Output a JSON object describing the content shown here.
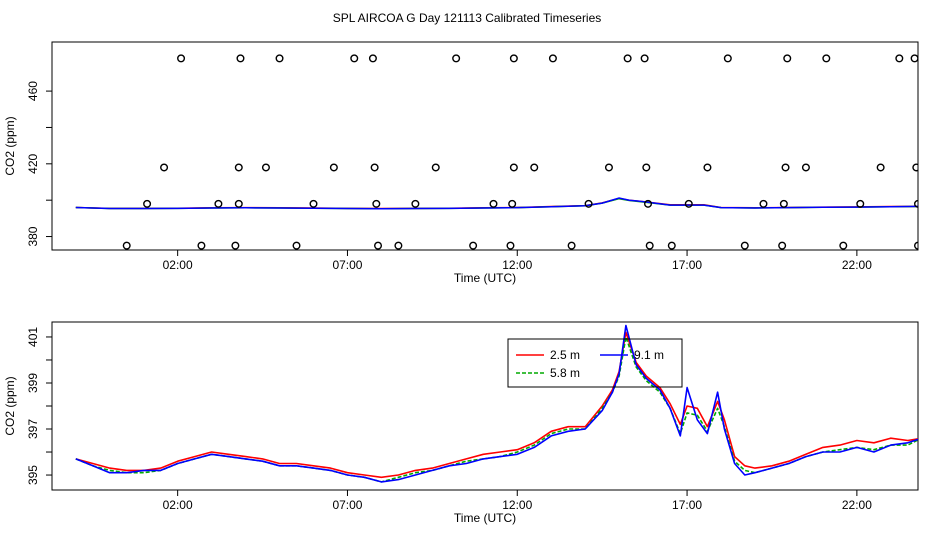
{
  "title": "SPL AIRCOA G  Day 121113  Calibrated Timeseries",
  "chart_data": [
    {
      "type": "scatter",
      "xlabel": "Time (UTC)",
      "ylabel": "CO2 (ppm)",
      "x_unit": "hours UTC",
      "xlim": [
        -1.7,
        23.8
      ],
      "ylim": [
        372.6,
        487.0
      ],
      "x_ticks": [
        {
          "value": 2,
          "label": "02:00"
        },
        {
          "value": 7,
          "label": "07:00"
        },
        {
          "value": 12,
          "label": "12:00"
        },
        {
          "value": 17,
          "label": "17:00"
        },
        {
          "value": 22,
          "label": "22:00"
        }
      ],
      "y_ticks": [
        380,
        420,
        460
      ],
      "y_minor_ticks": [
        400,
        440
      ],
      "legend": "none",
      "points": [
        {
          "x": 0.5,
          "y": 375
        },
        {
          "x": 1.1,
          "y": 398
        },
        {
          "x": 1.6,
          "y": 418
        },
        {
          "x": 2.1,
          "y": 478
        },
        {
          "x": 2.7,
          "y": 375
        },
        {
          "x": 3.2,
          "y": 398
        },
        {
          "x": 3.7,
          "y": 375
        },
        {
          "x": 3.8,
          "y": 398
        },
        {
          "x": 3.8,
          "y": 418
        },
        {
          "x": 3.85,
          "y": 478
        },
        {
          "x": 4.6,
          "y": 418
        },
        {
          "x": 5.0,
          "y": 478
        },
        {
          "x": 5.5,
          "y": 375
        },
        {
          "x": 6.0,
          "y": 398
        },
        {
          "x": 6.6,
          "y": 418
        },
        {
          "x": 7.2,
          "y": 478
        },
        {
          "x": 7.75,
          "y": 478
        },
        {
          "x": 7.8,
          "y": 418
        },
        {
          "x": 7.85,
          "y": 398
        },
        {
          "x": 7.9,
          "y": 375
        },
        {
          "x": 8.5,
          "y": 375
        },
        {
          "x": 9.0,
          "y": 398
        },
        {
          "x": 9.6,
          "y": 418
        },
        {
          "x": 10.2,
          "y": 478
        },
        {
          "x": 10.7,
          "y": 375
        },
        {
          "x": 11.3,
          "y": 398
        },
        {
          "x": 11.8,
          "y": 375
        },
        {
          "x": 11.85,
          "y": 398
        },
        {
          "x": 11.9,
          "y": 418
        },
        {
          "x": 11.9,
          "y": 478
        },
        {
          "x": 12.5,
          "y": 418
        },
        {
          "x": 13.05,
          "y": 478
        },
        {
          "x": 13.6,
          "y": 375
        },
        {
          "x": 14.1,
          "y": 398
        },
        {
          "x": 14.7,
          "y": 418
        },
        {
          "x": 15.25,
          "y": 478
        },
        {
          "x": 15.75,
          "y": 478
        },
        {
          "x": 15.8,
          "y": 418
        },
        {
          "x": 15.85,
          "y": 398
        },
        {
          "x": 15.9,
          "y": 375
        },
        {
          "x": 16.55,
          "y": 375
        },
        {
          "x": 17.05,
          "y": 398
        },
        {
          "x": 17.6,
          "y": 418
        },
        {
          "x": 18.2,
          "y": 478
        },
        {
          "x": 18.7,
          "y": 375
        },
        {
          "x": 19.25,
          "y": 398
        },
        {
          "x": 19.8,
          "y": 375
        },
        {
          "x": 19.85,
          "y": 398
        },
        {
          "x": 19.9,
          "y": 418
        },
        {
          "x": 19.95,
          "y": 478
        },
        {
          "x": 20.5,
          "y": 418
        },
        {
          "x": 21.1,
          "y": 478
        },
        {
          "x": 21.6,
          "y": 375
        },
        {
          "x": 22.1,
          "y": 398
        },
        {
          "x": 22.7,
          "y": 418
        },
        {
          "x": 23.25,
          "y": 478
        },
        {
          "x": 23.7,
          "y": 478
        },
        {
          "x": 23.75,
          "y": 418
        },
        {
          "x": 23.8,
          "y": 398
        },
        {
          "x": 23.8,
          "y": 375
        }
      ],
      "line_series": [
        {
          "color": "#ff0000",
          "x": [
            -1.0,
            0,
            1,
            2,
            3,
            4,
            5,
            6,
            7,
            8,
            9,
            10,
            11,
            12,
            13,
            14,
            14.5,
            15.0,
            15.3,
            15.8,
            16.5,
            17.0,
            17.5,
            18.0,
            19,
            20,
            21,
            22,
            23,
            23.9
          ],
          "y": [
            396.0,
            395.5,
            395.5,
            395.6,
            395.8,
            395.9,
            395.8,
            395.7,
            395.5,
            395.4,
            395.5,
            395.6,
            395.8,
            396.0,
            396.5,
            397.0,
            398.5,
            401.0,
            400.0,
            399.0,
            397.5,
            397.5,
            397.5,
            396.0,
            395.8,
            396.0,
            396.2,
            396.3,
            396.5,
            396.6
          ]
        },
        {
          "color": "#00aa00",
          "x": [
            -1.0,
            0,
            1,
            2,
            3,
            4,
            5,
            6,
            7,
            8,
            9,
            10,
            11,
            12,
            13,
            14,
            14.5,
            15.0,
            15.3,
            15.8,
            16.5,
            17.0,
            17.5,
            18.0,
            19,
            20,
            21,
            22,
            23,
            23.9
          ],
          "y": [
            396.0,
            395.4,
            395.4,
            395.5,
            395.7,
            395.8,
            395.7,
            395.6,
            395.4,
            395.3,
            395.4,
            395.5,
            395.7,
            395.9,
            396.4,
            396.9,
            398.4,
            400.8,
            399.8,
            398.8,
            397.3,
            397.3,
            397.3,
            395.9,
            395.7,
            395.9,
            396.1,
            396.2,
            396.4,
            396.5
          ]
        },
        {
          "color": "#0000ff",
          "x": [
            -1.0,
            0,
            1,
            2,
            3,
            4,
            5,
            6,
            7,
            8,
            9,
            10,
            11,
            12,
            13,
            14,
            14.5,
            15.0,
            15.3,
            15.8,
            16.5,
            17.0,
            17.5,
            18.0,
            19,
            20,
            21,
            22,
            23,
            23.9
          ],
          "y": [
            396.0,
            395.4,
            395.4,
            395.5,
            395.7,
            395.8,
            395.7,
            395.6,
            395.4,
            395.3,
            395.4,
            395.5,
            395.7,
            395.9,
            396.4,
            396.9,
            398.4,
            401.2,
            400.0,
            399.0,
            397.3,
            397.3,
            397.3,
            395.9,
            395.7,
            395.9,
            396.1,
            396.2,
            396.4,
            396.6
          ]
        }
      ]
    },
    {
      "type": "line",
      "xlabel": "Time (UTC)",
      "ylabel": "CO2 (ppm)",
      "x_unit": "hours UTC",
      "xlim": [
        -1.7,
        23.8
      ],
      "ylim": [
        394.35,
        401.65
      ],
      "x_ticks": [
        {
          "value": 2,
          "label": "02:00"
        },
        {
          "value": 7,
          "label": "07:00"
        },
        {
          "value": 12,
          "label": "12:00"
        },
        {
          "value": 17,
          "label": "17:00"
        },
        {
          "value": 22,
          "label": "22:00"
        }
      ],
      "y_ticks": [
        395,
        397,
        399,
        401
      ],
      "y_minor_ticks": [
        396,
        398,
        400
      ],
      "legend": "top-center",
      "legend_layout": [
        {
          "label": "2.5 m",
          "color": "#ff0000",
          "dash": "solid"
        },
        {
          "label": "9.1 m",
          "color": "#0000ff",
          "dash": "solid"
        },
        {
          "label": "5.8 m",
          "color": "#00aa00",
          "dash": "dashed"
        }
      ],
      "series": [
        {
          "name": "2.5 m",
          "color": "#ff0000",
          "dash": "solid",
          "x": [
            -1.0,
            -0.5,
            0,
            0.5,
            1,
            1.5,
            2,
            2.5,
            3,
            3.5,
            4,
            4.5,
            5,
            5.5,
            6,
            6.5,
            7,
            7.5,
            8,
            8.5,
            9,
            9.5,
            10,
            10.5,
            11,
            11.5,
            12,
            12.5,
            13,
            13.5,
            14,
            14.5,
            14.8,
            15.0,
            15.2,
            15.5,
            15.8,
            16.2,
            16.5,
            16.8,
            17.0,
            17.3,
            17.6,
            17.9,
            18.1,
            18.4,
            18.7,
            19.0,
            19.5,
            20,
            20.5,
            21,
            21.5,
            22,
            22.5,
            23,
            23.5,
            23.9
          ],
          "y": [
            395.7,
            395.5,
            395.3,
            395.2,
            395.2,
            395.3,
            395.6,
            395.8,
            396.0,
            395.9,
            395.8,
            395.7,
            395.5,
            395.5,
            395.4,
            395.3,
            395.1,
            395.0,
            394.9,
            395.0,
            395.2,
            395.3,
            395.5,
            395.7,
            395.9,
            396.0,
            396.1,
            396.4,
            396.9,
            397.1,
            397.1,
            398.0,
            398.7,
            399.5,
            401.2,
            399.9,
            399.3,
            398.8,
            398.1,
            397.2,
            398.0,
            397.9,
            397.1,
            398.2,
            397.4,
            395.8,
            395.4,
            395.3,
            395.4,
            395.6,
            395.9,
            396.2,
            396.3,
            396.5,
            396.4,
            396.6,
            396.5,
            396.6
          ]
        },
        {
          "name": "5.8 m",
          "color": "#00aa00",
          "dash": "dashed",
          "x": [
            -1.0,
            -0.5,
            0,
            0.5,
            1,
            1.5,
            2,
            2.5,
            3,
            3.5,
            4,
            4.5,
            5,
            5.5,
            6,
            6.5,
            7,
            7.5,
            8,
            8.5,
            9,
            9.5,
            10,
            10.5,
            11,
            11.5,
            12,
            12.5,
            13,
            13.5,
            14,
            14.5,
            14.8,
            15.0,
            15.2,
            15.5,
            15.8,
            16.2,
            16.5,
            16.8,
            17.0,
            17.3,
            17.6,
            17.9,
            18.1,
            18.4,
            18.7,
            19.0,
            19.5,
            20,
            20.5,
            21,
            21.5,
            22,
            22.5,
            23,
            23.5,
            23.9
          ],
          "y": [
            395.7,
            395.4,
            395.2,
            395.1,
            395.1,
            395.2,
            395.5,
            395.7,
            395.9,
            395.8,
            395.7,
            395.6,
            395.4,
            395.4,
            395.3,
            395.2,
            395.0,
            394.9,
            394.7,
            394.9,
            395.1,
            395.2,
            395.4,
            395.6,
            395.7,
            395.8,
            396.0,
            396.3,
            396.8,
            397.0,
            397.0,
            397.9,
            398.6,
            399.3,
            401.0,
            399.7,
            399.1,
            398.6,
            397.9,
            396.8,
            397.7,
            397.6,
            396.9,
            397.9,
            397.1,
            395.6,
            395.2,
            395.1,
            395.3,
            395.5,
            395.8,
            396.0,
            396.1,
            396.2,
            396.1,
            396.3,
            396.3,
            396.6
          ]
        },
        {
          "name": "9.1 m",
          "color": "#0000ff",
          "dash": "solid",
          "x": [
            -1.0,
            -0.5,
            0,
            0.5,
            1,
            1.5,
            2,
            2.5,
            3,
            3.5,
            4,
            4.5,
            5,
            5.5,
            6,
            6.5,
            7,
            7.5,
            8,
            8.5,
            9,
            9.5,
            10,
            10.5,
            11,
            11.5,
            12,
            12.5,
            13,
            13.5,
            14,
            14.5,
            14.8,
            15.0,
            15.2,
            15.5,
            15.8,
            16.2,
            16.5,
            16.8,
            17.0,
            17.3,
            17.6,
            17.9,
            18.1,
            18.4,
            18.7,
            19.0,
            19.5,
            20,
            20.5,
            21,
            21.5,
            22,
            22.5,
            23,
            23.5,
            23.9
          ],
          "y": [
            395.7,
            395.4,
            395.1,
            395.1,
            395.2,
            395.2,
            395.5,
            395.7,
            395.9,
            395.8,
            395.7,
            395.6,
            395.4,
            395.4,
            395.3,
            395.2,
            395.0,
            394.9,
            394.7,
            394.8,
            395.0,
            395.2,
            395.4,
            395.5,
            395.7,
            395.8,
            395.9,
            396.2,
            396.7,
            396.9,
            397.0,
            397.8,
            398.6,
            399.4,
            401.5,
            399.8,
            399.2,
            398.7,
            397.9,
            396.7,
            398.8,
            397.4,
            396.8,
            398.6,
            397.0,
            395.5,
            395.0,
            395.1,
            395.3,
            395.5,
            395.8,
            396.0,
            396.0,
            396.2,
            396.0,
            396.3,
            396.4,
            396.6
          ]
        }
      ]
    }
  ]
}
